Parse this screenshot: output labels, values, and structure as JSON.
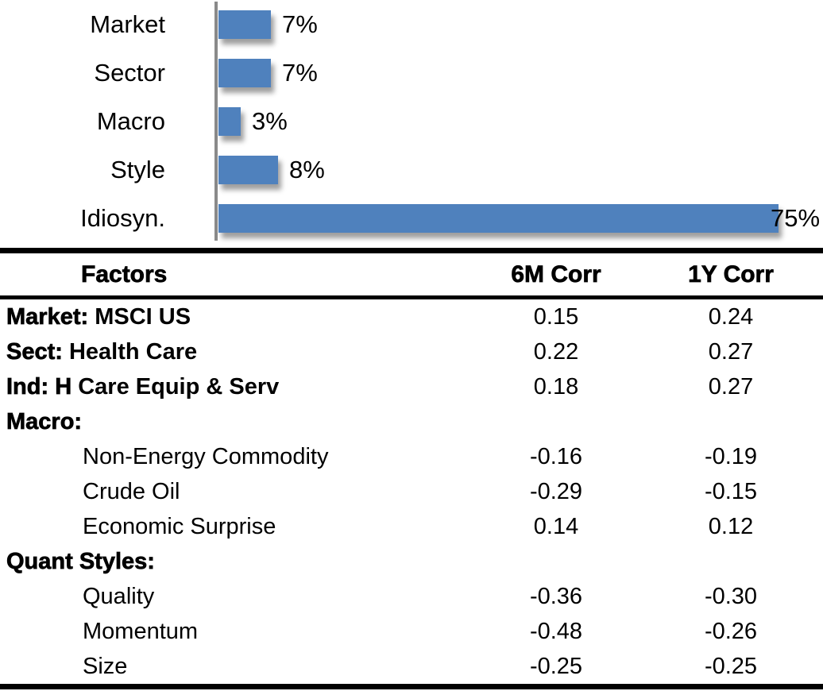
{
  "chart_data": {
    "type": "bar",
    "orientation": "horizontal",
    "title": "",
    "categories": [
      "Market",
      "Sector",
      "Macro",
      "Style",
      "Idiosyn."
    ],
    "values": [
      7,
      7,
      3,
      8,
      75
    ],
    "value_labels": [
      "7%",
      "7%",
      "3%",
      "8%",
      "75%"
    ],
    "xlim": [
      0,
      80
    ],
    "grid": false,
    "legend": false,
    "bar_color": "#4F81BD",
    "axis_color": "#8A8A8A",
    "text_color": "#000000"
  },
  "table": {
    "headers": {
      "factors": "Factors",
      "corr6m": "6M Corr",
      "corr1y": "1Y Corr"
    },
    "rows": [
      {
        "prefix": "Market:",
        "rest": " MSCI US",
        "indent": false,
        "bold_rest": true,
        "c6": "0.15",
        "c1": "0.24"
      },
      {
        "prefix": "Sect:",
        "rest": " Health Care",
        "indent": false,
        "bold_rest": true,
        "c6": "0.22",
        "c1": "0.27"
      },
      {
        "prefix": "Ind: H",
        "rest": " Care Equip & Serv",
        "indent": false,
        "bold_rest": true,
        "c6": "0.18",
        "c1": "0.27"
      },
      {
        "prefix": "Macro:",
        "rest": "",
        "indent": false,
        "bold_rest": false,
        "c6": "",
        "c1": ""
      },
      {
        "prefix": "",
        "rest": "Non-Energy Commodity",
        "indent": true,
        "bold_rest": false,
        "c6": "-0.16",
        "c1": "-0.19"
      },
      {
        "prefix": "",
        "rest": "Crude Oil",
        "indent": true,
        "bold_rest": false,
        "c6": "-0.29",
        "c1": "-0.15"
      },
      {
        "prefix": "",
        "rest": "Economic Surprise",
        "indent": true,
        "bold_rest": false,
        "c6": "0.14",
        "c1": "0.12"
      },
      {
        "prefix": "Quant Styles:",
        "rest": "",
        "indent": false,
        "bold_rest": false,
        "c6": "",
        "c1": ""
      },
      {
        "prefix": "",
        "rest": "Quality",
        "indent": true,
        "bold_rest": false,
        "c6": "-0.36",
        "c1": "-0.30"
      },
      {
        "prefix": "",
        "rest": "Momentum",
        "indent": true,
        "bold_rest": false,
        "c6": "-0.48",
        "c1": "-0.26"
      },
      {
        "prefix": "",
        "rest": "Size",
        "indent": true,
        "bold_rest": false,
        "c6": "-0.25",
        "c1": "-0.25"
      }
    ]
  }
}
